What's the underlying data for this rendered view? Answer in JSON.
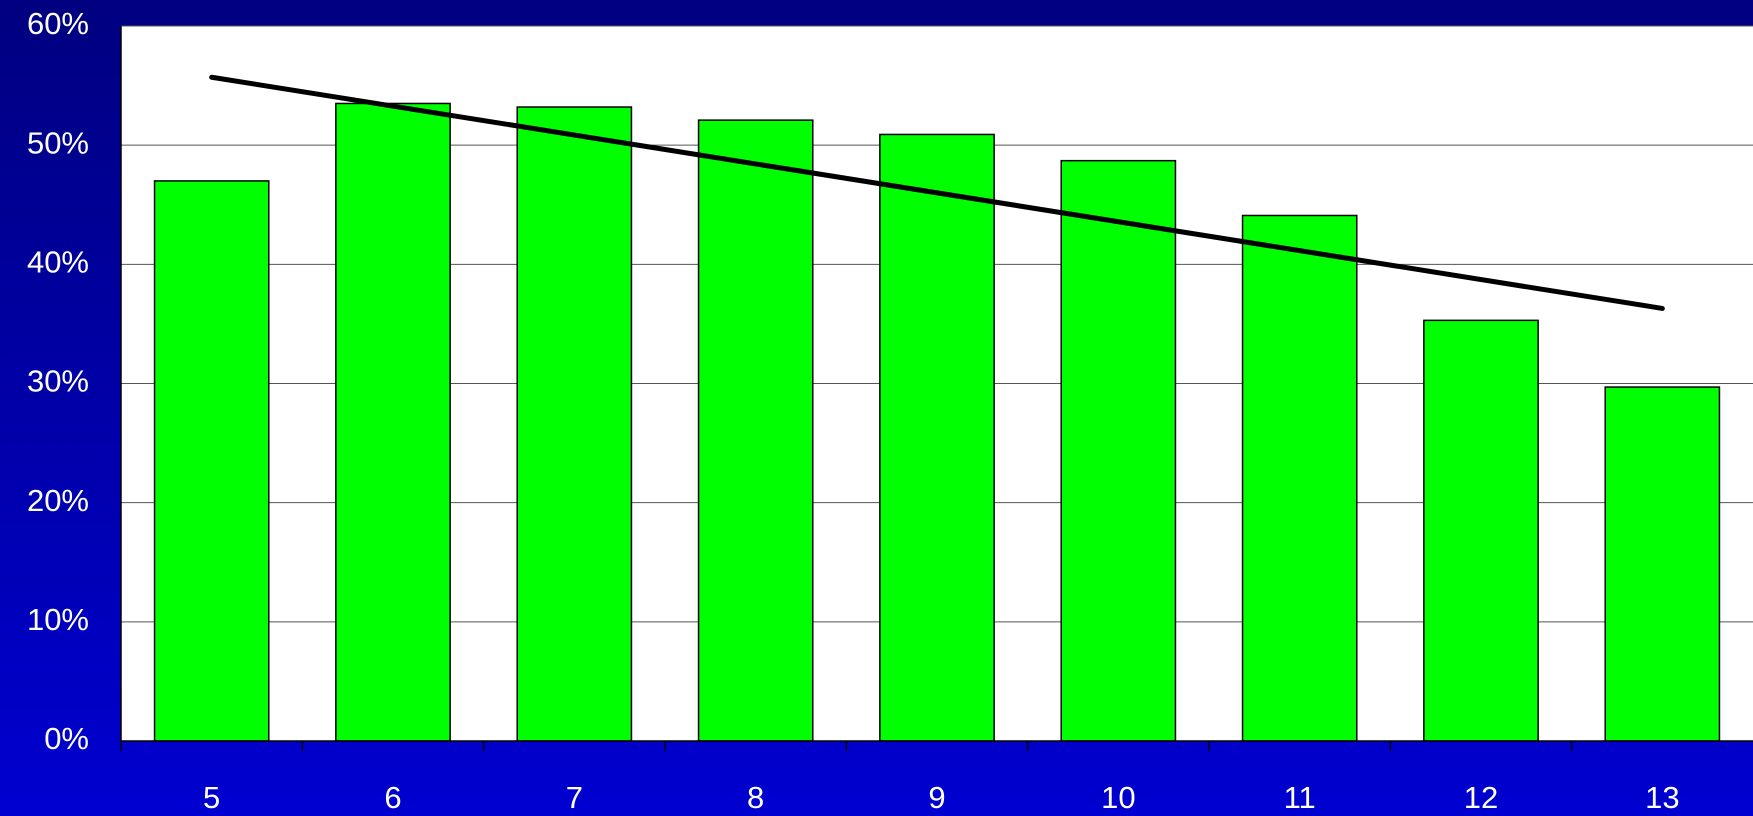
{
  "chart_data": {
    "type": "bar",
    "categories": [
      "5",
      "6",
      "7",
      "8",
      "9",
      "10",
      "11",
      "12",
      "13"
    ],
    "values": [
      47.0,
      53.5,
      53.2,
      52.1,
      50.9,
      48.7,
      44.1,
      35.3,
      29.7
    ],
    "color": "#00ff00",
    "trend": [
      55.7,
      36.3
    ],
    "ylim": [
      0,
      60
    ],
    "yticks": [
      {
        "value": 0,
        "label": "0%"
      },
      {
        "value": 10,
        "label": "10%"
      },
      {
        "value": 20,
        "label": "20%"
      },
      {
        "value": 30,
        "label": "30%"
      },
      {
        "value": 40,
        "label": "40%"
      },
      {
        "value": 50,
        "label": "50%"
      },
      {
        "value": 60,
        "label": "60%"
      }
    ],
    "grid": true
  }
}
